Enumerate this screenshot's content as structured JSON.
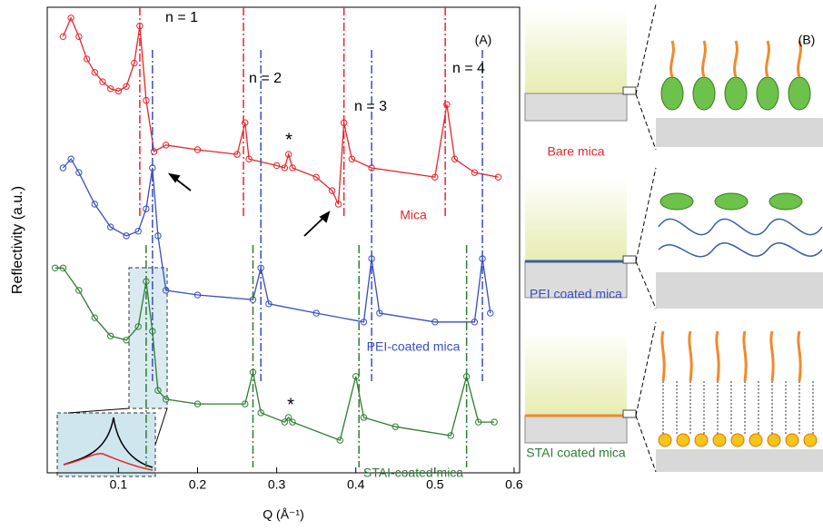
{
  "chart_data": {
    "type": "line",
    "panel_label": "(A)",
    "ylabel": "Reflectivity (a.u.)",
    "xlabel": "Q (Å⁻¹)",
    "xlim": [
      0.01,
      0.607
    ],
    "xticks": [
      0.1,
      0.2,
      0.3,
      0.4,
      0.5,
      0.6
    ],
    "ylim": [
      0,
      10
    ],
    "series": [
      {
        "name": "Mica",
        "color": "#e8252b",
        "peak_lines": [
          0.127,
          0.258,
          0.385,
          0.513
        ],
        "x": [
          0.03,
          0.04,
          0.05,
          0.06,
          0.07,
          0.08,
          0.09,
          0.1,
          0.11,
          0.12,
          0.127,
          0.135,
          0.145,
          0.16,
          0.2,
          0.25,
          0.26,
          0.265,
          0.3,
          0.31,
          0.315,
          0.32,
          0.35,
          0.37,
          0.378,
          0.385,
          0.395,
          0.42,
          0.5,
          0.515,
          0.525,
          0.55,
          0.58
        ],
        "values": [
          9.37,
          9.77,
          9.37,
          8.89,
          8.6,
          8.4,
          8.25,
          8.2,
          8.3,
          8.8,
          9.6,
          8.0,
          6.9,
          7.04,
          6.94,
          6.84,
          7.52,
          6.74,
          6.6,
          6.55,
          6.84,
          6.55,
          6.35,
          6.06,
          5.77,
          7.52,
          6.74,
          6.55,
          6.35,
          7.91,
          6.74,
          6.45,
          6.35
        ]
      },
      {
        "name": "PEI-coated mica",
        "color": "#3a4ec0",
        "peak_lines": [
          0.143,
          0.28,
          0.42,
          0.56
        ],
        "x": [
          0.03,
          0.04,
          0.05,
          0.07,
          0.09,
          0.11,
          0.125,
          0.135,
          0.143,
          0.15,
          0.16,
          0.2,
          0.27,
          0.28,
          0.29,
          0.35,
          0.41,
          0.42,
          0.43,
          0.5,
          0.55,
          0.56,
          0.57
        ],
        "values": [
          6.55,
          6.74,
          6.45,
          5.77,
          5.28,
          5.09,
          5.19,
          5.67,
          6.55,
          5.09,
          3.92,
          3.82,
          3.72,
          4.4,
          3.63,
          3.43,
          3.24,
          4.6,
          3.43,
          3.24,
          3.24,
          4.6,
          3.43
        ]
      },
      {
        "name": "STAI-coated mica",
        "color": "#2e7d32",
        "peak_lines": [
          0.135,
          0.27,
          0.404,
          0.54
        ],
        "x": [
          0.02,
          0.03,
          0.05,
          0.07,
          0.09,
          0.11,
          0.125,
          0.135,
          0.143,
          0.15,
          0.16,
          0.2,
          0.26,
          0.27,
          0.28,
          0.31,
          0.315,
          0.32,
          0.38,
          0.4,
          0.41,
          0.45,
          0.52,
          0.54,
          0.555,
          0.575
        ],
        "values": [
          4.4,
          4.4,
          3.92,
          3.33,
          2.94,
          2.85,
          3.14,
          4.11,
          3.04,
          1.77,
          1.58,
          1.48,
          1.48,
          2.16,
          1.29,
          1.09,
          1.19,
          1.09,
          0.7,
          2.07,
          1.19,
          0.99,
          0.8,
          2.07,
          1.09,
          1.09
        ]
      }
    ],
    "annotations": [
      "n = 1",
      "n = 2",
      "n = 3",
      "n = 4",
      "*",
      "*"
    ]
  },
  "panel_b": {
    "label": "(B)",
    "rows": [
      "Bare mica",
      "PEI coated mica",
      "STAI coated mica"
    ]
  }
}
